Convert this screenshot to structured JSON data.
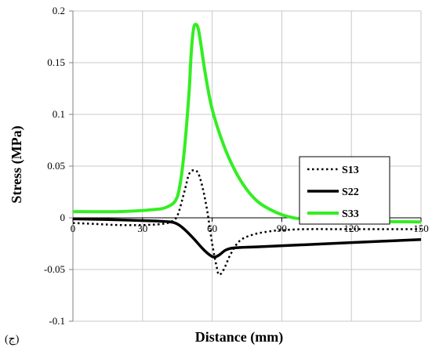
{
  "chart_data": {
    "type": "line",
    "xlabel": "Distance (mm)",
    "ylabel": "Stress (MPa)",
    "panel_label": "(ج)",
    "xlim": [
      0,
      150
    ],
    "ylim": [
      -0.1,
      0.2
    ],
    "x_ticks": [
      0,
      30,
      60,
      90,
      120,
      150
    ],
    "y_ticks": [
      -0.1,
      -0.05,
      0,
      0.05,
      0.1,
      0.15,
      0.2
    ],
    "x_tick_labels": [
      "0",
      "30",
      "60",
      "90",
      "120",
      "150"
    ],
    "y_tick_labels": [
      "-0.1",
      "-0.05",
      "0",
      "0.05",
      "0.1",
      "0.15",
      "0.2"
    ],
    "grid": true,
    "legend_position": "top-right",
    "series": [
      {
        "name": "S13",
        "color": "#000000",
        "style": "dotted",
        "points": [
          [
            0,
            -0.005
          ],
          [
            10,
            -0.006
          ],
          [
            20,
            -0.007
          ],
          [
            30,
            -0.007
          ],
          [
            38,
            -0.006
          ],
          [
            42,
            -0.004
          ],
          [
            45,
            0.002
          ],
          [
            48,
            0.025
          ],
          [
            50,
            0.042
          ],
          [
            52,
            0.046
          ],
          [
            54,
            0.043
          ],
          [
            56,
            0.028
          ],
          [
            58,
            0.005
          ],
          [
            60,
            -0.025
          ],
          [
            62,
            -0.048
          ],
          [
            63,
            -0.055
          ],
          [
            65,
            -0.05
          ],
          [
            68,
            -0.035
          ],
          [
            72,
            -0.022
          ],
          [
            78,
            -0.016
          ],
          [
            85,
            -0.013
          ],
          [
            90,
            -0.012
          ],
          [
            100,
            -0.011
          ],
          [
            120,
            -0.011
          ],
          [
            150,
            -0.011
          ]
        ]
      },
      {
        "name": "S22",
        "color": "#000000",
        "style": "solid",
        "points": [
          [
            0,
            -0.001
          ],
          [
            20,
            -0.002
          ],
          [
            35,
            -0.003
          ],
          [
            42,
            -0.004
          ],
          [
            45,
            -0.006
          ],
          [
            48,
            -0.011
          ],
          [
            52,
            -0.02
          ],
          [
            56,
            -0.03
          ],
          [
            59,
            -0.036
          ],
          [
            61,
            -0.038
          ],
          [
            63,
            -0.036
          ],
          [
            66,
            -0.031
          ],
          [
            70,
            -0.029
          ],
          [
            80,
            -0.028
          ],
          [
            100,
            -0.026
          ],
          [
            120,
            -0.024
          ],
          [
            150,
            -0.021
          ]
        ]
      },
      {
        "name": "S33",
        "color": "#33ee22",
        "style": "solid",
        "points": [
          [
            0,
            0.006
          ],
          [
            20,
            0.006
          ],
          [
            35,
            0.008
          ],
          [
            40,
            0.01
          ],
          [
            44,
            0.016
          ],
          [
            46,
            0.03
          ],
          [
            48,
            0.065
          ],
          [
            50,
            0.12
          ],
          [
            51,
            0.16
          ],
          [
            52,
            0.183
          ],
          [
            53,
            0.187
          ],
          [
            54,
            0.183
          ],
          [
            55,
            0.17
          ],
          [
            57,
            0.14
          ],
          [
            60,
            0.105
          ],
          [
            65,
            0.07
          ],
          [
            70,
            0.045
          ],
          [
            75,
            0.027
          ],
          [
            80,
            0.015
          ],
          [
            85,
            0.008
          ],
          [
            90,
            0.003
          ],
          [
            95,
            0
          ],
          [
            100,
            -0.001
          ],
          [
            120,
            -0.003
          ],
          [
            150,
            -0.004
          ]
        ]
      }
    ]
  }
}
